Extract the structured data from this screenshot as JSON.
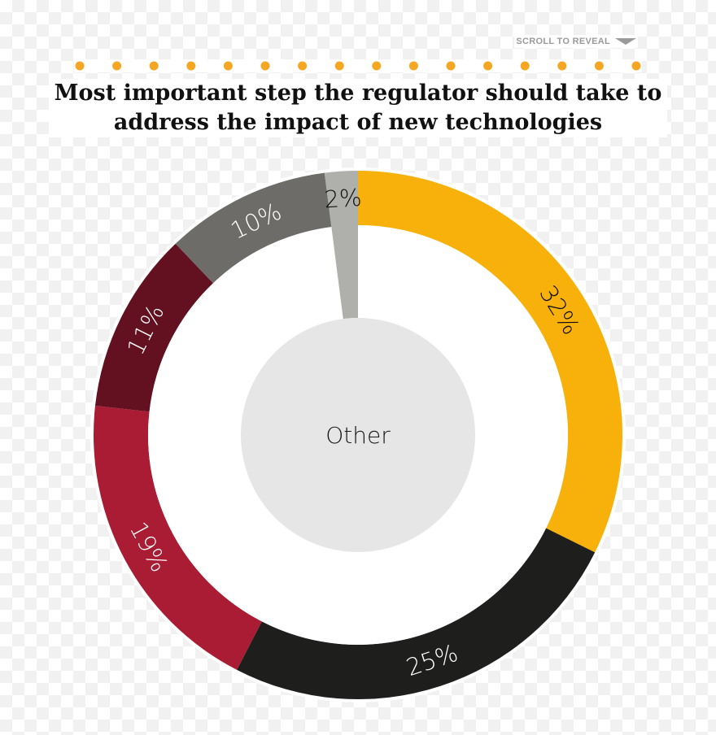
{
  "header": {
    "scroll_label": "SCROLL TO REVEAL"
  },
  "dots": {
    "count": 16,
    "color": "#f5a623"
  },
  "chart_data": {
    "type": "pie",
    "variant": "donut",
    "title": "Most important step the regulator should take to address the impact of new technologies",
    "center_label": "Other",
    "slices": [
      {
        "label": "32%",
        "value": 32,
        "color": "#f7b10a",
        "text_color": "#111111"
      },
      {
        "label": "25%",
        "value": 25,
        "color": "#1e1e1c",
        "text_color": "#ffffff"
      },
      {
        "label": "19%",
        "value": 19,
        "color": "#a91c33",
        "text_color": "#ffffff"
      },
      {
        "label": "11%",
        "value": 11,
        "color": "#631120",
        "text_color": "#ffffff"
      },
      {
        "label": "10%",
        "value": 10,
        "color": "#6d6c69",
        "text_color": "#ffffff"
      },
      {
        "label": "2%",
        "value": 2,
        "color": "#afafab",
        "text_color": "#111111"
      }
    ],
    "highlighted_slice": "2%",
    "center_color": "#e6e6e6"
  }
}
